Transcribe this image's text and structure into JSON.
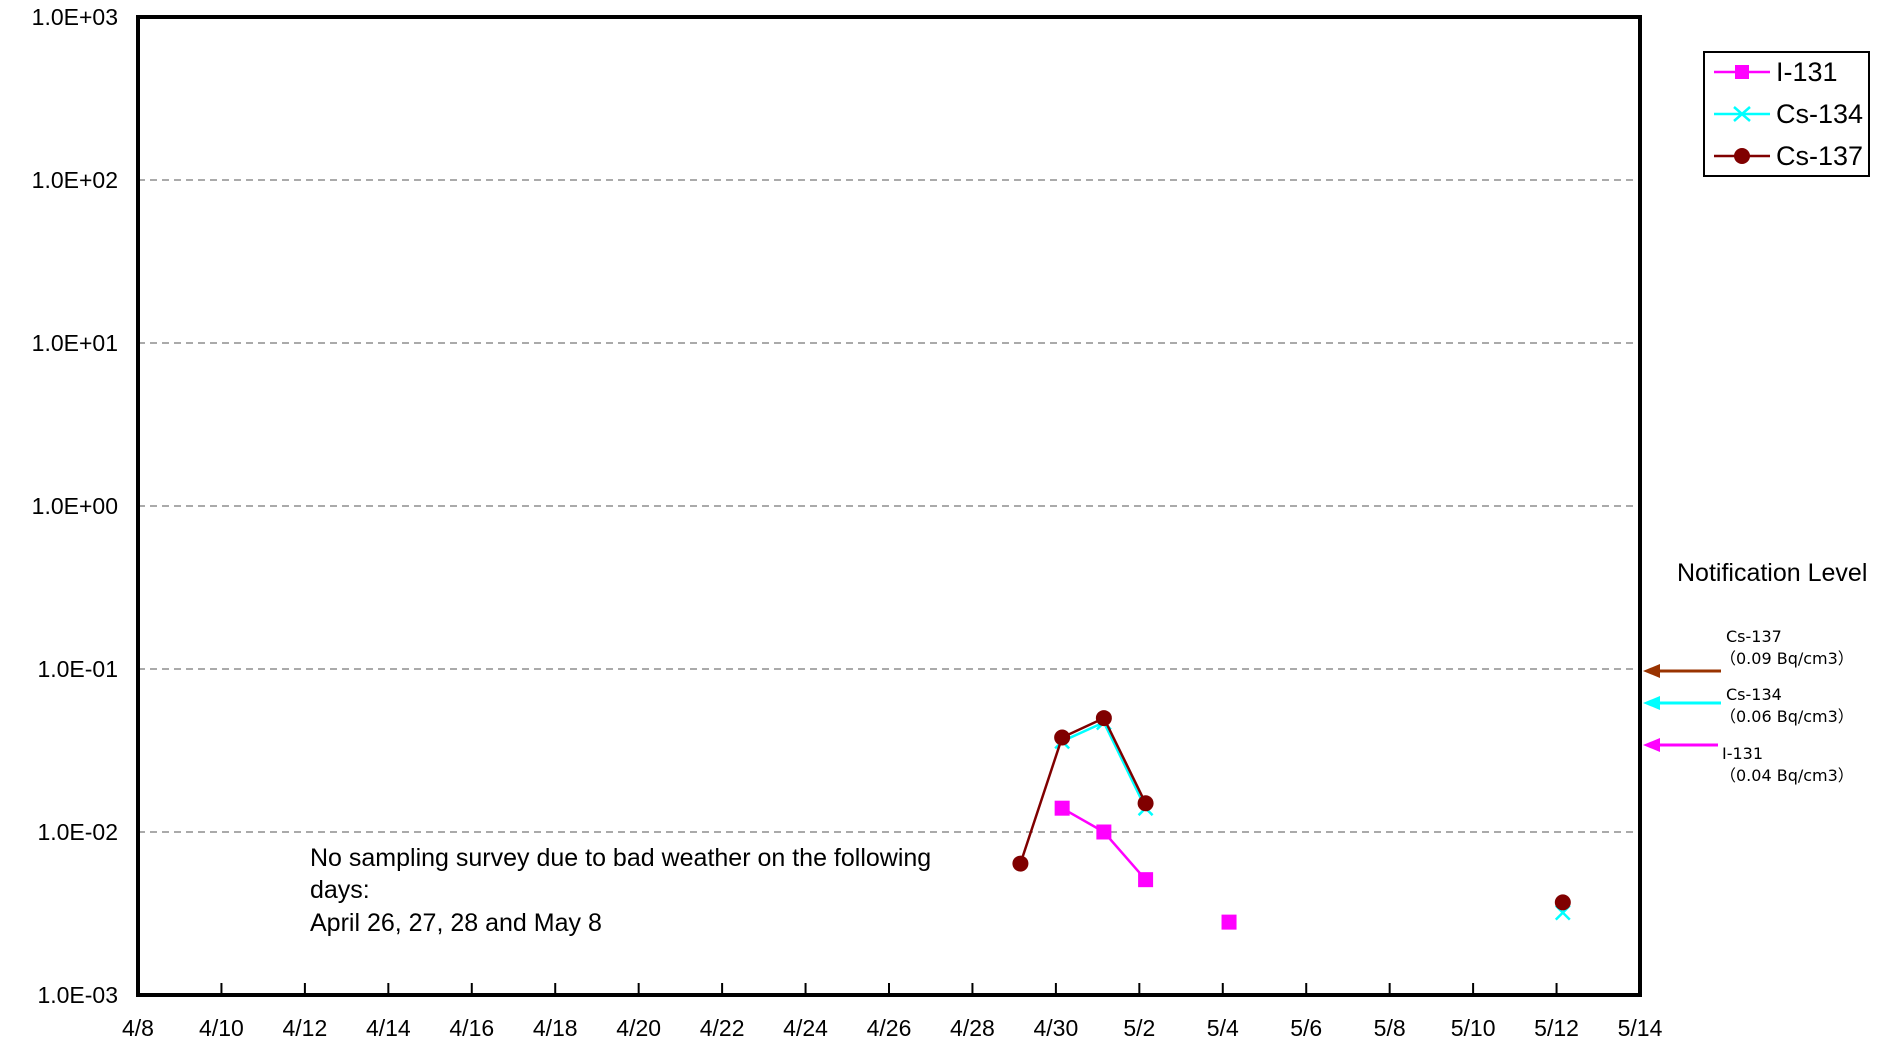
{
  "chart_data": {
    "type": "line",
    "title": "",
    "xlabel": "",
    "ylabel": "",
    "y_scale": "log",
    "ylim": [
      0.001,
      1000
    ],
    "xlim": [
      "4/8",
      "5/14"
    ],
    "y_ticks": [
      "1.0E+03",
      "1.0E+02",
      "1.0E+01",
      "1.0E+00",
      "1.0E-01",
      "1.0E-02",
      "1.0E-03"
    ],
    "x_ticks": [
      "4/8",
      "4/10",
      "4/12",
      "4/14",
      "4/16",
      "4/18",
      "4/20",
      "4/22",
      "4/24",
      "4/26",
      "4/28",
      "4/30",
      "5/2",
      "5/4",
      "5/6",
      "5/8",
      "5/10",
      "5/12",
      "5/14"
    ],
    "grid": "horizontal dashed at each decade",
    "legend_position": "top-right",
    "series": [
      {
        "name": "I-131",
        "color": "#ff00ff",
        "marker": "square",
        "x": [
          "4/30",
          "5/1",
          "5/2",
          "5/4"
        ],
        "y": [
          0.014,
          0.01,
          0.0051,
          0.0028
        ],
        "segments": [
          [
            0,
            1,
            2
          ]
        ]
      },
      {
        "name": "Cs-134",
        "color": "#00ffff",
        "marker": "x",
        "x": [
          "4/30",
          "5/1",
          "5/2",
          "5/12"
        ],
        "y": [
          0.036,
          0.047,
          0.014,
          0.0032
        ],
        "segments": [
          [
            0,
            1,
            2
          ]
        ]
      },
      {
        "name": "Cs-137",
        "color": "#800000",
        "marker": "circle",
        "x": [
          "4/29",
          "4/30",
          "5/1",
          "5/2",
          "5/12"
        ],
        "y": [
          0.0064,
          0.038,
          0.05,
          0.015,
          0.0037
        ],
        "segments": [
          [
            0,
            1,
            2,
            3
          ]
        ]
      }
    ],
    "annotation": {
      "lines": [
        "No sampling survey due to bad weather on the following",
        "days:",
        "April 26, 27, 28 and May 8"
      ]
    },
    "notification": {
      "title": "Notification Level",
      "levels": [
        {
          "nuclide": "Cs-137",
          "value_text": "（0.09  Bq/cm3）",
          "value": 0.09,
          "color": "#993300"
        },
        {
          "nuclide": "Cs-134",
          "value_text": "（0.06  Bq/cm3）",
          "value": 0.06,
          "color": "#00ffff"
        },
        {
          "nuclide": "I-131",
          "value_text": "（0.04  Bq/cm3）",
          "value": 0.04,
          "color": "#ff00ff"
        }
      ]
    }
  }
}
